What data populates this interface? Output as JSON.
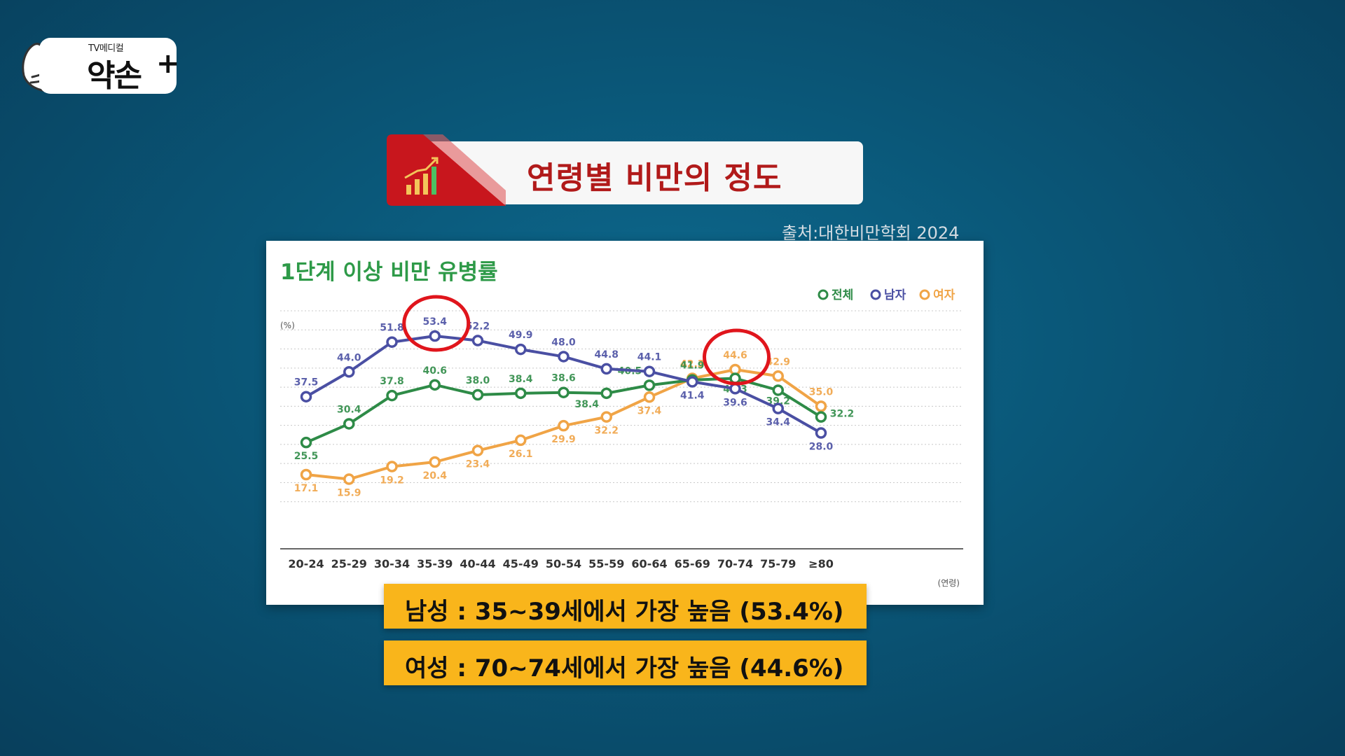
{
  "logo": {
    "small": "TV메디컬",
    "main": "약손",
    "plus": "+"
  },
  "title": "연령별 비만의 정도",
  "source": "출처:대한비만학회 2024",
  "notes": {
    "male": "남성 : 35~39세에서 가장 높음 (53.4%)",
    "female": "여성 : 70~74세에서 가장 높음 (44.6%)"
  },
  "colors": {
    "total": "#2e8b47",
    "male": "#4a4fa3",
    "female": "#f0a446",
    "title_red": "#c8161d",
    "note_bg": "#f9b51b",
    "highlight": "#e0151c"
  },
  "chart_data": {
    "type": "line",
    "title": "1단계 이상 비만 유병률",
    "ylabel": "(%)",
    "xlabel": "(연령)",
    "ylim": [
      5,
      60
    ],
    "grid": true,
    "legend_position": "top-right",
    "categories": [
      "20-24",
      "25-29",
      "30-34",
      "35-39",
      "40-44",
      "45-49",
      "50-54",
      "55-59",
      "60-64",
      "65-69",
      "70-74",
      "75-79",
      "≥80"
    ],
    "series": [
      {
        "name": "전체",
        "key": "total",
        "values": [
          25.5,
          30.4,
          37.8,
          40.6,
          38.0,
          38.4,
          38.6,
          38.4,
          40.5,
          41.9,
          42.3,
          39.2,
          32.2
        ]
      },
      {
        "name": "남자",
        "key": "male",
        "values": [
          37.5,
          44.0,
          51.8,
          53.4,
          52.2,
          49.9,
          48.0,
          44.8,
          44.1,
          41.4,
          39.6,
          34.4,
          28.0
        ]
      },
      {
        "name": "여자",
        "key": "female",
        "values": [
          17.1,
          15.9,
          19.2,
          20.4,
          23.4,
          26.1,
          29.9,
          32.2,
          37.4,
          42.3,
          44.6,
          42.9,
          35.0
        ]
      }
    ],
    "highlights": [
      {
        "series": "male",
        "category": "35-39"
      },
      {
        "series": "female",
        "category": "70-74"
      }
    ]
  }
}
